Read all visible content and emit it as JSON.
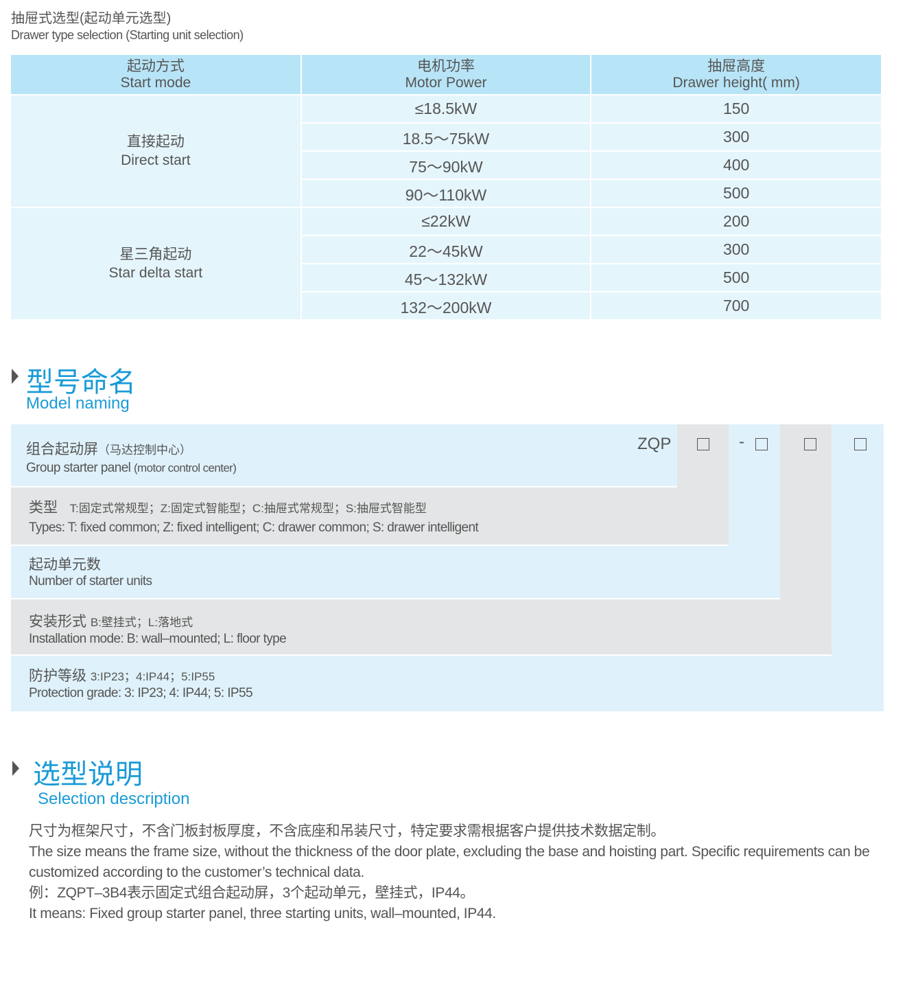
{
  "drawer_selection": {
    "title_zh": "抽屉式选型(起动单元选型)",
    "title_en": "Drawer type selection (Starting unit selection)",
    "headers": [
      {
        "zh": "起动方式",
        "en": "Start mode"
      },
      {
        "zh": "电机功率",
        "en": "Motor Power"
      },
      {
        "zh": "抽屉高度",
        "en": "Drawer height( mm)"
      }
    ],
    "groups": [
      {
        "mode_zh": "直接起动",
        "mode_en": "Direct start",
        "rows": [
          {
            "power": "≤18.5kW",
            "height": "150"
          },
          {
            "power": "18.5～75kW",
            "height": "300"
          },
          {
            "power": "75～90kW",
            "height": "400"
          },
          {
            "power": "90～110kW",
            "height": "500"
          }
        ]
      },
      {
        "mode_zh": "星三角起动",
        "mode_en": "Star delta start",
        "rows": [
          {
            "power": "≤22kW",
            "height": "200"
          },
          {
            "power": "22～45kW",
            "height": "300"
          },
          {
            "power": "45～132kW",
            "height": "500"
          },
          {
            "power": "132～200kW",
            "height": "700"
          }
        ]
      }
    ]
  },
  "model_naming": {
    "title_zh": "型号命名",
    "title_en": "Model naming",
    "prefix": "ZQP",
    "dash": "-",
    "rows": [
      {
        "zh": "组合起动屏",
        "zh_sub": "（马达控制中心）",
        "en": "Group starter panel",
        "en_sub": "(motor control center)"
      },
      {
        "zh": "类型",
        "zh_sub": "T:固定式常规型；Z:固定式智能型；C:抽屉式常规型；S:抽屉式智能型",
        "en": "Types: T: fixed common; Z: fixed intelligent; C: drawer common; S: drawer intelligent"
      },
      {
        "zh": "起动单元数",
        "en": "Number  of  starter units"
      },
      {
        "zh": "安装形式",
        "zh_sub": "B:壁挂式；L:落地式",
        "en": "Installation mode: B: wall–mounted; L: floor type"
      },
      {
        "zh": "防护等级",
        "zh_sub": "3:IP23；4:IP44；5:IP55",
        "en": "Protection grade:  3: IP23; 4: IP44; 5: IP55"
      }
    ]
  },
  "selection_description": {
    "title_zh": "选型说明",
    "title_en": "Selection description",
    "lines": [
      "尺寸为框架尺寸，不含门板封板厚度，不含底座和吊装尺寸，特定要求需根据客户提供技术数据定制。",
      "The size means the frame size, without the thickness of the door plate, excluding the base and hoisting part. Specific requirements can be customized according to the customer’s technical data.",
      "例：ZQPT–3B4表示固定式组合起动屏，3个起动单元，壁挂式，IP44。",
      "It means: Fixed group starter panel, three starting units, wall–mounted, IP44."
    ]
  },
  "colors": {
    "accent": "#1a9bd7",
    "header_bg": "#b8e4f7",
    "cell_bg": "#e5f5fc",
    "gray_bg": "#e4e5e6"
  }
}
